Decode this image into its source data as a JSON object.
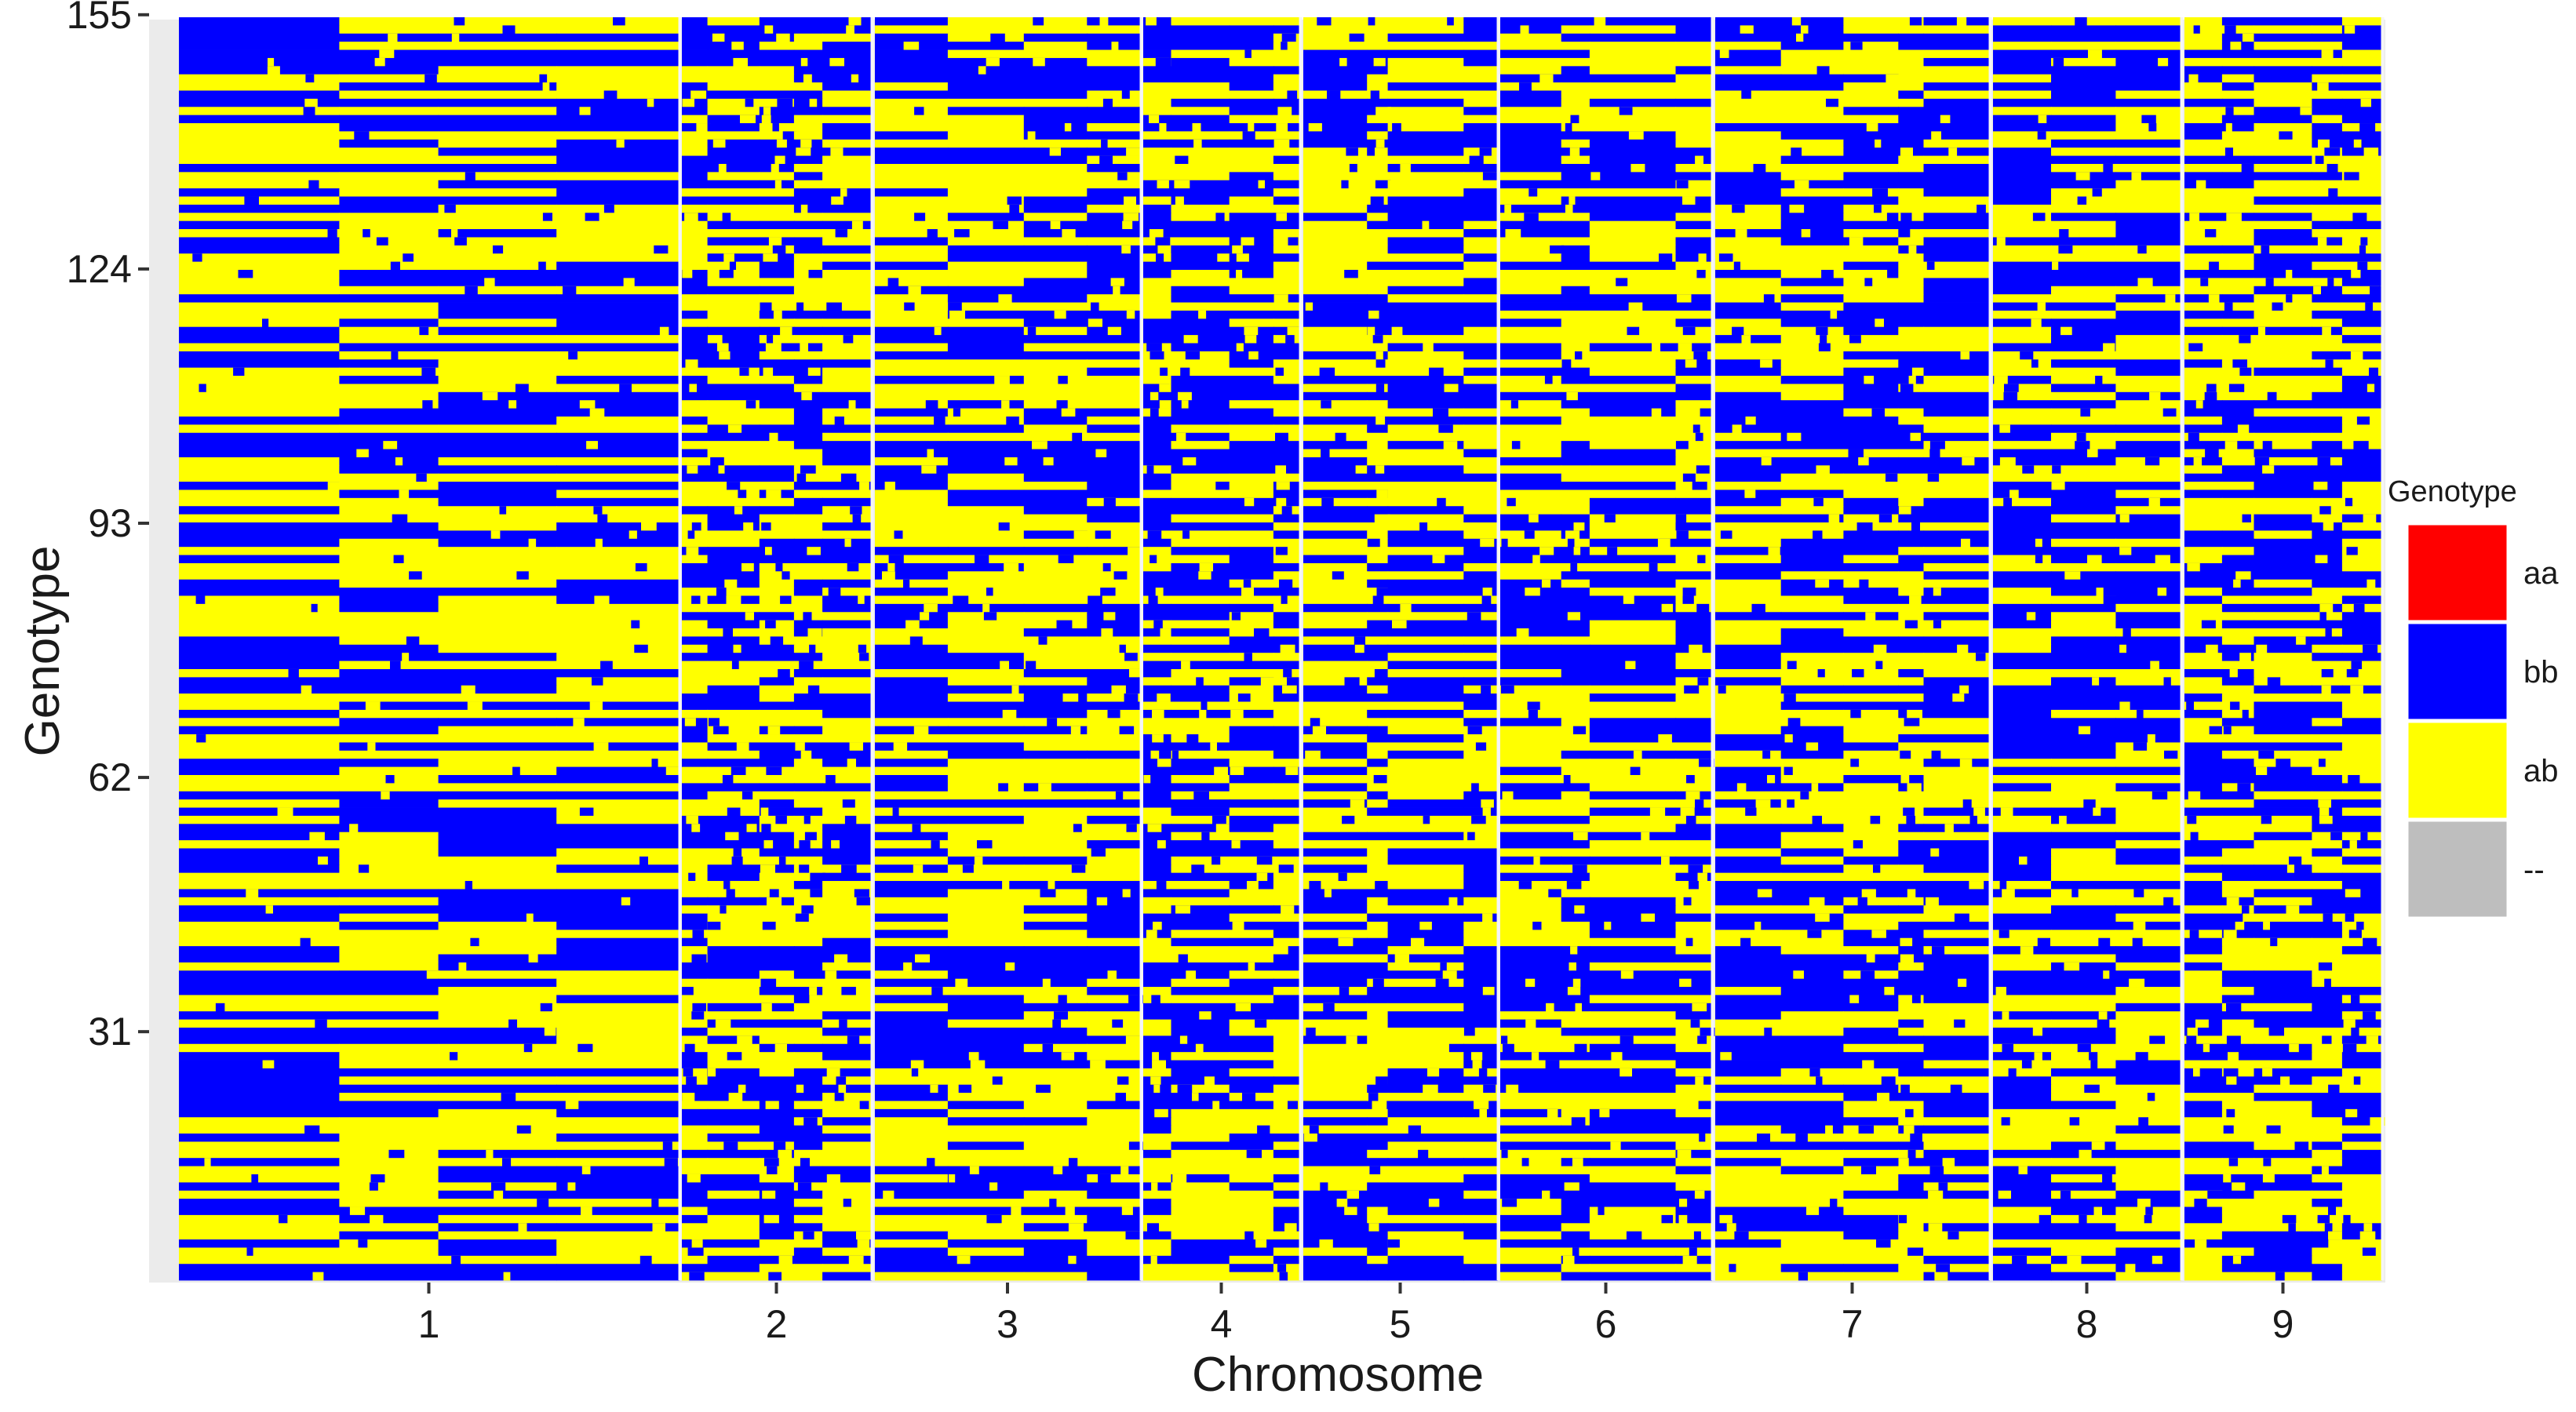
{
  "chart_data": {
    "type": "heatmap",
    "xlabel": "Chromosome",
    "ylabel": "Genotype",
    "chromosomes": [
      "1",
      "2",
      "3",
      "4",
      "5",
      "6",
      "7",
      "8",
      "9"
    ],
    "y_ticks": [
      "31",
      "62",
      "93",
      "124",
      "155"
    ],
    "y_range": [
      1,
      155
    ],
    "genotype_count": 155,
    "legend": {
      "title": "Genotype",
      "position": "right",
      "items": [
        {
          "label": "aa",
          "color": "#ff0000"
        },
        {
          "label": "bb",
          "color": "#0000ff"
        },
        {
          "label": "ab",
          "color": "#ffff00"
        },
        {
          "label": "--",
          "color": "#bebebe"
        }
      ]
    },
    "colors": {
      "aa": "#ff0000",
      "bb": "#0000ff",
      "ab": "#ffff00",
      "missing": "#bebebe",
      "panel_background": "#ebebeb"
    }
  }
}
